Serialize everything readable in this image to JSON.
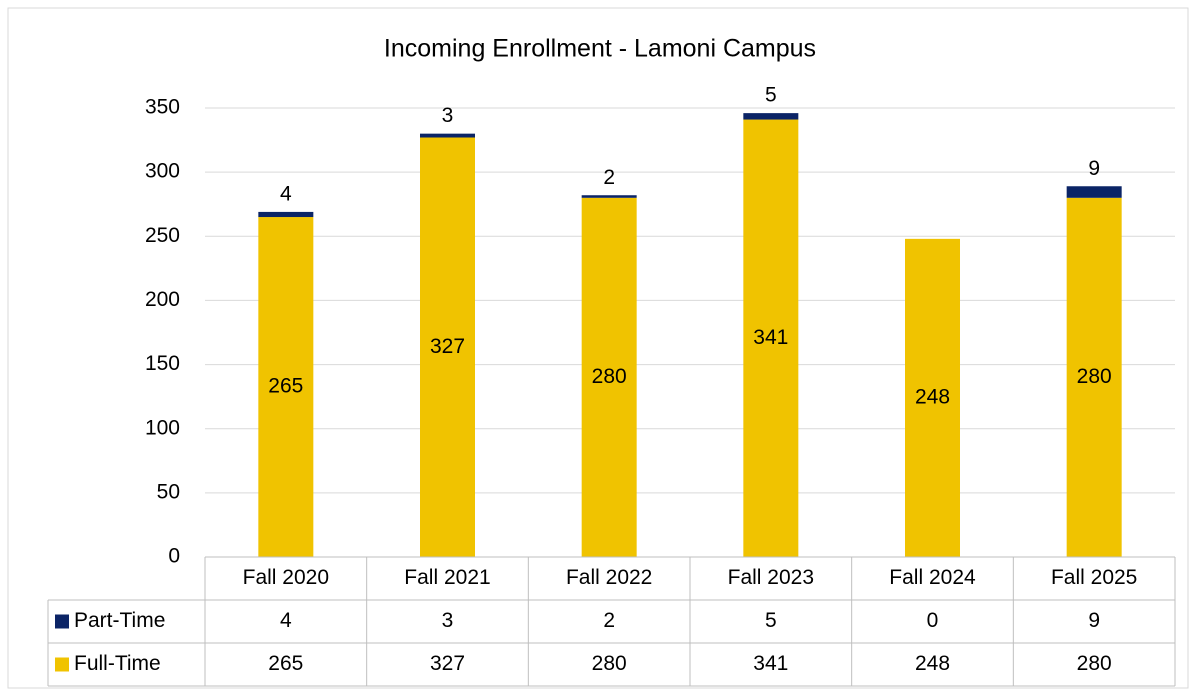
{
  "chart_data": {
    "type": "stacked_bar",
    "title": "Incoming Enrollment - Lamoni Campus",
    "categories": [
      "Fall 2020",
      "Fall 2021",
      "Fall 2022",
      "Fall 2023",
      "Fall 2024",
      "Fall 2025"
    ],
    "series": [
      {
        "name": "Full-Time",
        "color": "#f0c300",
        "values": [
          265,
          327,
          280,
          341,
          248,
          280
        ]
      },
      {
        "name": "Part-Time",
        "color": "#0b2466",
        "values": [
          4,
          3,
          2,
          5,
          0,
          9
        ]
      }
    ],
    "ylim": [
      0,
      350
    ],
    "yticks": [
      0,
      50,
      100,
      150,
      200,
      250,
      300,
      350
    ],
    "grid": true
  }
}
